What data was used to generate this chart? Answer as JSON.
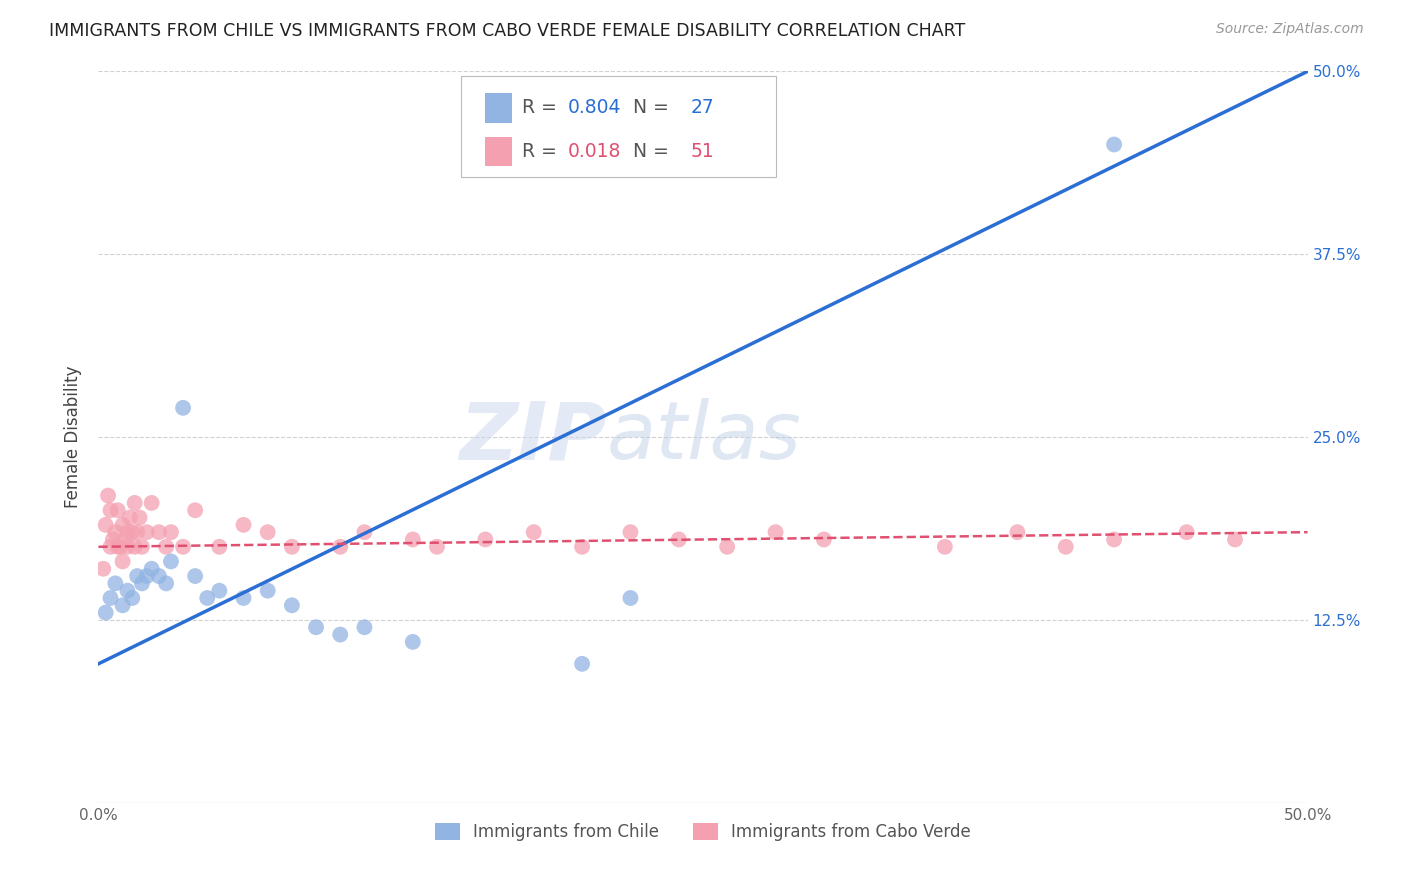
{
  "title": "IMMIGRANTS FROM CHILE VS IMMIGRANTS FROM CABO VERDE FEMALE DISABILITY CORRELATION CHART",
  "source": "Source: ZipAtlas.com",
  "ylabel": "Female Disability",
  "x_min": 0.0,
  "x_max": 0.5,
  "y_min": 0.0,
  "y_max": 0.5,
  "watermark": "ZIPatlas",
  "chile_color": "#92b4e3",
  "cabo_verde_color": "#f4a0b0",
  "chile_line_color": "#2b6fd4",
  "cabo_verde_line_color": "#e05070",
  "chile_line_solid": true,
  "cabo_verde_line_dashed": true,
  "chile_R": "0.804",
  "chile_N": "27",
  "cabo_verde_R": "0.018",
  "cabo_verde_N": "51",
  "chile_line_x0": 0.0,
  "chile_line_y0": 0.095,
  "chile_line_x1": 0.5,
  "chile_line_y1": 0.5,
  "cabo_verde_line_x0": 0.0,
  "cabo_verde_line_y0": 0.175,
  "cabo_verde_line_x1": 0.5,
  "cabo_verde_line_y1": 0.185,
  "chile_points_x": [
    0.003,
    0.005,
    0.007,
    0.01,
    0.012,
    0.014,
    0.016,
    0.018,
    0.02,
    0.022,
    0.025,
    0.028,
    0.03,
    0.035,
    0.04,
    0.045,
    0.05,
    0.06,
    0.07,
    0.08,
    0.09,
    0.1,
    0.11,
    0.13,
    0.2,
    0.22,
    0.42
  ],
  "chile_points_y": [
    0.13,
    0.14,
    0.15,
    0.135,
    0.145,
    0.14,
    0.155,
    0.15,
    0.155,
    0.16,
    0.155,
    0.15,
    0.165,
    0.27,
    0.155,
    0.14,
    0.145,
    0.14,
    0.145,
    0.135,
    0.12,
    0.115,
    0.12,
    0.11,
    0.095,
    0.14,
    0.45
  ],
  "cabo_verde_points_x": [
    0.002,
    0.003,
    0.004,
    0.005,
    0.005,
    0.006,
    0.007,
    0.008,
    0.008,
    0.009,
    0.01,
    0.01,
    0.011,
    0.012,
    0.012,
    0.013,
    0.014,
    0.015,
    0.015,
    0.016,
    0.017,
    0.018,
    0.02,
    0.022,
    0.025,
    0.028,
    0.03,
    0.035,
    0.04,
    0.05,
    0.06,
    0.07,
    0.08,
    0.1,
    0.11,
    0.13,
    0.14,
    0.16,
    0.18,
    0.2,
    0.22,
    0.24,
    0.26,
    0.28,
    0.3,
    0.35,
    0.38,
    0.4,
    0.42,
    0.45,
    0.47
  ],
  "cabo_verde_points_y": [
    0.16,
    0.19,
    0.21,
    0.175,
    0.2,
    0.18,
    0.185,
    0.2,
    0.175,
    0.175,
    0.19,
    0.165,
    0.18,
    0.185,
    0.175,
    0.195,
    0.185,
    0.205,
    0.175,
    0.185,
    0.195,
    0.175,
    0.185,
    0.205,
    0.185,
    0.175,
    0.185,
    0.175,
    0.2,
    0.175,
    0.19,
    0.185,
    0.175,
    0.175,
    0.185,
    0.18,
    0.175,
    0.18,
    0.185,
    0.175,
    0.185,
    0.18,
    0.175,
    0.185,
    0.18,
    0.175,
    0.185,
    0.175,
    0.18,
    0.185,
    0.18
  ],
  "background_color": "#ffffff",
  "grid_color": "#cccccc",
  "legend_label_chile": "Immigrants from Chile",
  "legend_label_cabo": "Immigrants from Cabo Verde"
}
